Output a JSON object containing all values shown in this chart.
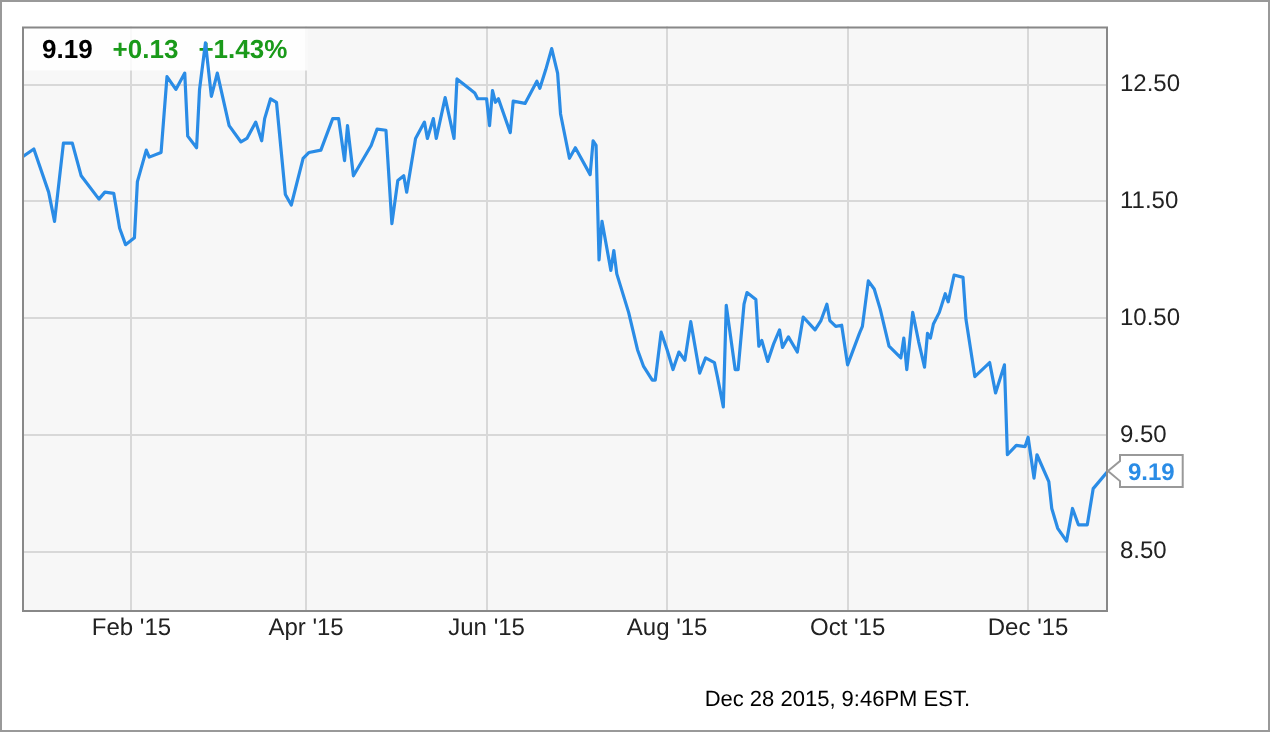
{
  "chart_data": {
    "type": "line",
    "x": [
      "2014-12-26",
      "2014-12-30",
      "2015-01-04",
      "2015-01-06",
      "2015-01-09",
      "2015-01-12",
      "2015-01-15",
      "2015-01-21",
      "2015-01-23",
      "2015-01-26",
      "2015-01-28",
      "2015-01-30",
      "2015-02-02",
      "2015-02-03",
      "2015-02-06",
      "2015-02-07",
      "2015-02-11",
      "2015-02-13",
      "2015-02-16",
      "2015-02-19",
      "2015-02-20",
      "2015-02-23",
      "2015-02-24",
      "2015-02-26",
      "2015-02-28",
      "2015-03-02",
      "2015-03-06",
      "2015-03-10",
      "2015-03-12",
      "2015-03-15",
      "2015-03-17",
      "2015-03-18",
      "2015-03-20",
      "2015-03-22",
      "2015-03-25",
      "2015-03-27",
      "2015-03-31",
      "2015-04-02",
      "2015-04-06",
      "2015-04-10",
      "2015-04-12",
      "2015-04-14",
      "2015-04-15",
      "2015-04-17",
      "2015-04-23",
      "2015-04-25",
      "2015-04-28",
      "2015-04-30",
      "2015-05-02",
      "2015-05-04",
      "2015-05-05",
      "2015-05-08",
      "2015-05-11",
      "2015-05-12",
      "2015-05-14",
      "2015-05-15",
      "2015-05-18",
      "2015-05-21",
      "2015-05-22",
      "2015-05-26",
      "2015-05-28",
      "2015-05-29",
      "2015-06-01",
      "2015-06-02",
      "2015-06-03",
      "2015-06-04",
      "2015-06-05",
      "2015-06-09",
      "2015-06-10",
      "2015-06-14",
      "2015-06-18",
      "2015-06-19",
      "2015-06-21",
      "2015-06-23",
      "2015-06-25",
      "2015-06-26",
      "2015-06-29",
      "2015-07-01",
      "2015-07-06",
      "2015-07-07",
      "2015-07-08",
      "2015-07-09",
      "2015-07-10",
      "2015-07-13",
      "2015-07-14",
      "2015-07-15",
      "2015-07-19",
      "2015-07-22",
      "2015-07-24",
      "2015-07-27",
      "2015-07-28",
      "2015-07-30",
      "2015-08-01",
      "2015-08-03",
      "2015-08-05",
      "2015-08-07",
      "2015-08-09",
      "2015-08-12",
      "2015-08-14",
      "2015-08-17",
      "2015-08-18",
      "2015-08-20",
      "2015-08-21",
      "2015-08-24",
      "2015-08-25",
      "2015-08-27",
      "2015-08-28",
      "2015-08-31",
      "2015-09-01",
      "2015-09-02",
      "2015-09-04",
      "2015-09-06",
      "2015-09-08",
      "2015-09-09",
      "2015-09-11",
      "2015-09-14",
      "2015-09-16",
      "2015-09-20",
      "2015-09-22",
      "2015-09-24",
      "2015-09-25",
      "2015-09-27",
      "2015-09-29",
      "2015-10-01",
      "2015-10-05",
      "2015-10-06",
      "2015-10-08",
      "2015-10-10",
      "2015-10-12",
      "2015-10-15",
      "2015-10-19",
      "2015-10-20",
      "2015-10-21",
      "2015-10-23",
      "2015-10-25",
      "2015-10-27",
      "2015-10-28",
      "2015-10-29",
      "2015-10-30",
      "2015-11-01",
      "2015-11-03",
      "2015-11-04",
      "2015-11-06",
      "2015-11-09",
      "2015-11-10",
      "2015-11-13",
      "2015-11-18",
      "2015-11-20",
      "2015-11-23",
      "2015-11-24",
      "2015-11-27",
      "2015-11-30",
      "2015-12-01",
      "2015-12-03",
      "2015-12-04",
      "2015-12-08",
      "2015-12-09",
      "2015-12-11",
      "2015-12-14",
      "2015-12-16",
      "2015-12-18",
      "2015-12-21",
      "2015-12-23",
      "2015-12-28"
    ],
    "series": [
      {
        "color": "#2a8ce6",
        "values": [
          11.88,
          11.95,
          11.58,
          11.33,
          12.0,
          12.0,
          11.72,
          11.52,
          11.58,
          11.57,
          11.27,
          11.13,
          11.19,
          11.67,
          11.94,
          11.88,
          11.92,
          12.57,
          12.46,
          12.6,
          12.06,
          11.96,
          12.46,
          12.86,
          12.4,
          12.6,
          12.15,
          12.01,
          12.04,
          12.18,
          12.02,
          12.21,
          12.38,
          12.35,
          11.56,
          11.47,
          11.87,
          11.92,
          11.94,
          12.21,
          12.21,
          11.85,
          12.15,
          11.72,
          11.98,
          12.12,
          12.11,
          11.31,
          11.68,
          11.72,
          11.58,
          12.04,
          12.18,
          12.04,
          12.21,
          12.04,
          12.39,
          12.04,
          12.55,
          12.47,
          12.43,
          12.38,
          12.38,
          12.15,
          12.45,
          12.35,
          12.38,
          12.09,
          12.36,
          12.34,
          12.53,
          12.47,
          12.63,
          12.81,
          12.6,
          12.25,
          11.87,
          11.96,
          11.73,
          12.02,
          11.98,
          11.0,
          11.33,
          10.91,
          11.08,
          10.88,
          10.55,
          10.23,
          10.09,
          9.97,
          9.97,
          10.38,
          10.23,
          10.06,
          10.21,
          10.14,
          10.47,
          10.03,
          10.16,
          10.12,
          10.0,
          9.74,
          10.61,
          10.06,
          10.06,
          10.62,
          10.72,
          10.66,
          10.26,
          10.31,
          10.13,
          10.28,
          10.4,
          10.25,
          10.34,
          10.21,
          10.51,
          10.4,
          10.48,
          10.62,
          10.48,
          10.43,
          10.44,
          10.1,
          10.37,
          10.43,
          10.82,
          10.75,
          10.58,
          10.26,
          10.16,
          10.33,
          10.06,
          10.55,
          10.3,
          10.08,
          10.37,
          10.33,
          10.45,
          10.55,
          10.71,
          10.64,
          10.87,
          10.85,
          10.49,
          10.0,
          10.12,
          9.86,
          10.1,
          9.33,
          9.41,
          9.4,
          9.48,
          9.13,
          9.33,
          9.1,
          8.87,
          8.7,
          8.59,
          8.87,
          8.73,
          8.73,
          9.04,
          9.19
        ]
      }
    ],
    "xlim": [
      "2014-12-26",
      "2015-12-28"
    ],
    "xticks": [
      {
        "value": "2015-02-01",
        "label": "Feb '15"
      },
      {
        "value": "2015-04-01",
        "label": "Apr '15"
      },
      {
        "value": "2015-06-01",
        "label": "Jun '15"
      },
      {
        "value": "2015-08-01",
        "label": "Aug '15"
      },
      {
        "value": "2015-10-01",
        "label": "Oct '15"
      },
      {
        "value": "2015-12-01",
        "label": "Dec '15"
      }
    ],
    "ylim": [
      8.0,
      13.0
    ],
    "yticks": [
      {
        "value": 8.5,
        "label": "8.50"
      },
      {
        "value": 9.5,
        "label": "9.50"
      },
      {
        "value": 10.5,
        "label": "10.50"
      },
      {
        "value": 11.5,
        "label": "11.50"
      },
      {
        "value": 12.5,
        "label": "12.50"
      }
    ],
    "grid": true,
    "legend": false,
    "marker": "none",
    "line_style": "solid",
    "annotations": [
      "9.19",
      "+0.13",
      "+1.43%",
      {
        "text": "9.19",
        "x": "2015-12-28",
        "y": 9.19
      },
      "Dec 28 2015, 9:46PM EST."
    ]
  }
}
